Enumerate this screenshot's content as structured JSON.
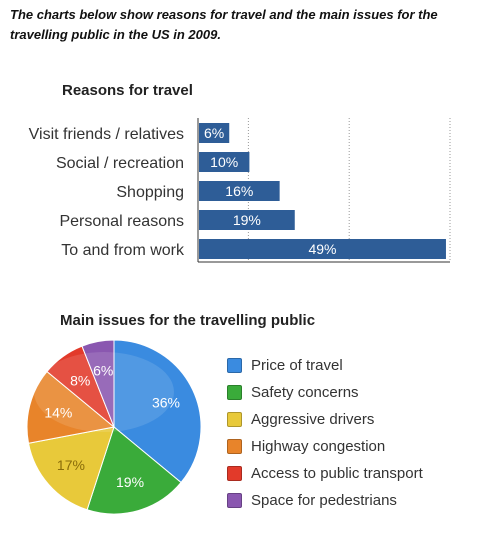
{
  "intro": "The charts below show reasons for travel and the main issues for the travelling public in the US in 2009.",
  "chart_data": [
    {
      "type": "bar",
      "orientation": "horizontal",
      "title": "Reasons for travel",
      "categories": [
        "Visit friends / relatives",
        "Social / recreation",
        "Shopping",
        "Personal reasons",
        "To and from work"
      ],
      "values": [
        6,
        10,
        16,
        19,
        49
      ],
      "value_labels": [
        "6%",
        "10%",
        "16%",
        "19%",
        "49%"
      ],
      "xlim": [
        0,
        50
      ],
      "grid": true,
      "color": "#2e5d97"
    },
    {
      "type": "pie",
      "title": "Main issues for the travelling public",
      "categories": [
        "Price of travel",
        "Safety concerns",
        "Aggressive drivers",
        "Highway congestion",
        "Access to public transport",
        "Space for pedestrians"
      ],
      "values": [
        36,
        19,
        17,
        14,
        8,
        6
      ],
      "value_labels": [
        "36%",
        "19%",
        "17%",
        "14%",
        "8%",
        "6%"
      ],
      "colors": [
        "#3a8be0",
        "#3aab3a",
        "#e8c93a",
        "#e8842a",
        "#e23a2a",
        "#8a57b0"
      ],
      "legend": "right"
    }
  ]
}
